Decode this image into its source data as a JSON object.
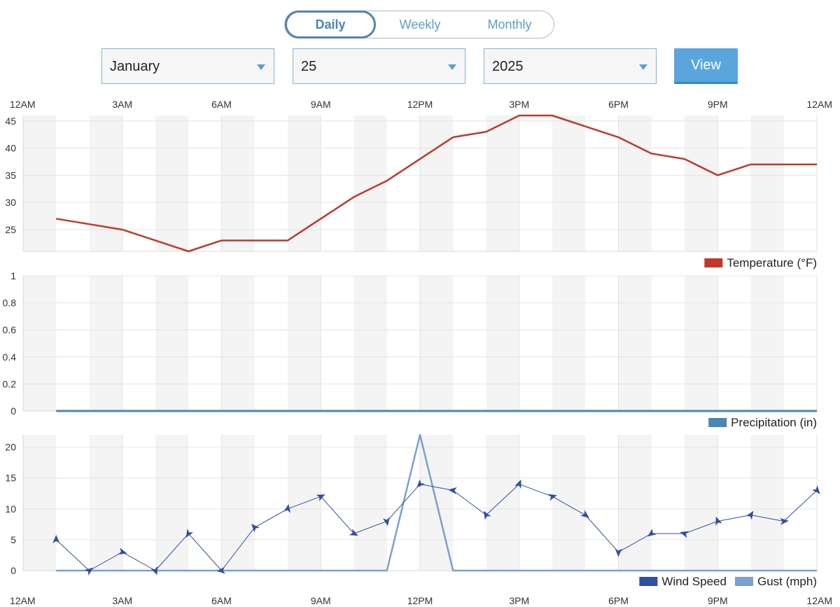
{
  "tabs": [
    {
      "label": "Daily",
      "active": true
    },
    {
      "label": "Weekly",
      "active": false
    },
    {
      "label": "Monthly",
      "active": false
    }
  ],
  "selectors": {
    "month": "January",
    "day": "25",
    "year": "2025"
  },
  "view_label": "View",
  "chart_data": [
    {
      "type": "line",
      "x_tick_labels": [
        "12AM",
        "3AM",
        "6AM",
        "9AM",
        "12PM",
        "3PM",
        "6PM",
        "9PM",
        "12AM"
      ],
      "x": [
        0,
        1,
        2,
        3,
        4,
        5,
        6,
        7,
        8,
        9,
        10,
        11,
        12,
        13,
        14,
        15,
        16,
        17,
        18,
        19,
        20,
        21,
        22,
        23,
        24
      ],
      "series": [
        {
          "name": "Temperature (°F)",
          "color": "#c0392b",
          "values": [
            null,
            27,
            26,
            25,
            23,
            21,
            23,
            23,
            23,
            27,
            31,
            34,
            38,
            42,
            43,
            46,
            46,
            44,
            42,
            39,
            38,
            35,
            37,
            37,
            37
          ]
        }
      ],
      "ylim": [
        21,
        46
      ],
      "y_ticks": [
        25,
        30,
        35,
        40,
        45
      ],
      "legend_position": "bottom-right"
    },
    {
      "type": "line",
      "x": [
        0,
        1,
        2,
        3,
        4,
        5,
        6,
        7,
        8,
        9,
        10,
        11,
        12,
        13,
        14,
        15,
        16,
        17,
        18,
        19,
        20,
        21,
        22,
        23,
        24
      ],
      "series": [
        {
          "name": "Precipitation (in)",
          "color": "#4a86b6",
          "values": [
            null,
            0,
            0,
            0,
            0,
            0,
            0,
            0,
            0,
            0,
            0,
            0,
            0,
            0,
            0,
            0,
            0,
            0,
            0,
            0,
            0,
            0,
            0,
            0,
            0
          ]
        }
      ],
      "ylim": [
        0,
        1
      ],
      "y_ticks": [
        "0",
        "0.2",
        "0.4",
        "0.6",
        "0.8",
        "1"
      ],
      "legend_position": "bottom-right"
    },
    {
      "type": "line",
      "x": [
        0,
        1,
        2,
        3,
        4,
        5,
        6,
        7,
        8,
        9,
        10,
        11,
        12,
        13,
        14,
        15,
        16,
        17,
        18,
        19,
        20,
        21,
        22,
        23,
        24
      ],
      "series": [
        {
          "name": "Wind Speed",
          "color": "#2f4fa3",
          "values": [
            null,
            5,
            0,
            3,
            0,
            6,
            0,
            7,
            10,
            12,
            6,
            8,
            14,
            13,
            9,
            14,
            12,
            9,
            3,
            6,
            6,
            8,
            9,
            8,
            13
          ]
        },
        {
          "name": "Gust (mph)",
          "color": "#7aa0cf",
          "values": [
            null,
            0,
            0,
            0,
            0,
            0,
            0,
            0,
            0,
            0,
            0,
            0,
            22,
            0,
            0,
            0,
            0,
            0,
            0,
            0,
            0,
            0,
            0,
            0,
            0
          ]
        }
      ],
      "ylim": [
        0,
        22
      ],
      "y_ticks": [
        0,
        5,
        10,
        15,
        20
      ],
      "x_tick_labels": [
        "12AM",
        "3AM",
        "6AM",
        "9AM",
        "12PM",
        "3PM",
        "6PM",
        "9PM",
        "12AM"
      ],
      "legend_position": "bottom-right"
    }
  ]
}
